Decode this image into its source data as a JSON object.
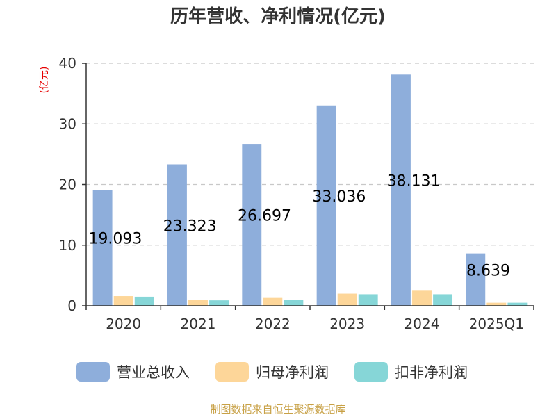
{
  "chart_data": {
    "type": "bar",
    "title": "历年营收、净利情况(亿元)",
    "ylabel": "(亿元)",
    "categories": [
      "2020",
      "2021",
      "2022",
      "2023",
      "2024",
      "2025Q1"
    ],
    "series": [
      {
        "name": "营业总收入",
        "color": "#8eaedb",
        "values": [
          19.093,
          23.323,
          26.697,
          33.036,
          38.131,
          8.639
        ]
      },
      {
        "name": "归母净利润",
        "color": "#fdd699",
        "values": [
          1.6,
          1.0,
          1.3,
          2.0,
          2.6,
          0.5
        ]
      },
      {
        "name": "扣非净利润",
        "color": "#86d6d7",
        "values": [
          1.5,
          0.9,
          1.0,
          1.9,
          1.9,
          0.5
        ]
      }
    ],
    "data_labels": [
      "19.093",
      "23.323",
      "26.697",
      "33.036",
      "38.131",
      "8.639"
    ],
    "ylim": [
      0,
      40
    ],
    "yticks": [
      0,
      10,
      20,
      30,
      40
    ],
    "grid": true,
    "legend_position": "bottom"
  },
  "source_text": "制图数据来自恒生聚源数据库"
}
